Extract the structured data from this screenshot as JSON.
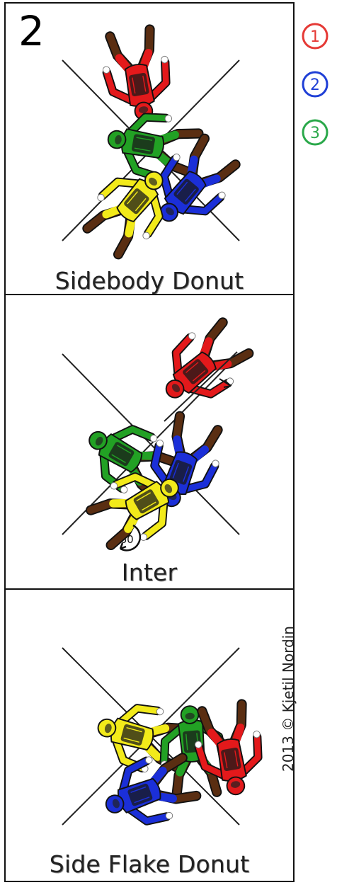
{
  "diagram": {
    "step_number": "2",
    "legend": [
      {
        "label": "1",
        "color": "#e53935"
      },
      {
        "label": "2",
        "color": "#1f3fd6"
      },
      {
        "label": "3",
        "color": "#2aa84a"
      }
    ],
    "panels": [
      {
        "caption": "Sidebody Donut"
      },
      {
        "caption": "Inter",
        "rotation_label": "360"
      },
      {
        "caption": "Side Flake Donut"
      }
    ],
    "copyright": "2013 © Kjetil Nordin",
    "colors": {
      "red": "#e3191b",
      "blue": "#1b2fd8",
      "green": "#22a124",
      "yellow": "#f2ea1a",
      "limb_dark": "#5a2e12",
      "outline": "#111111"
    }
  }
}
